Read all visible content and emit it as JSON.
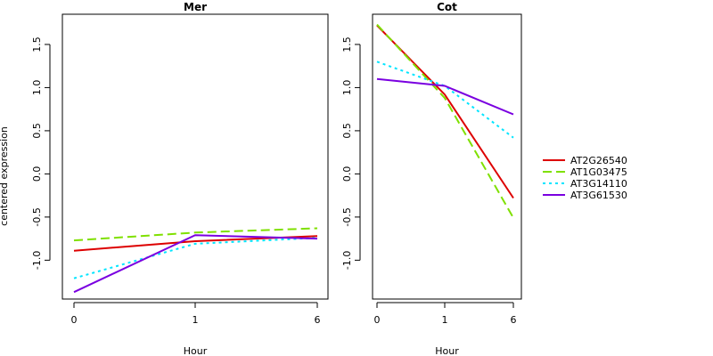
{
  "chart_data": {
    "type": "line",
    "shared_ylabel": "centered expression",
    "xlabel": "Hour",
    "ylim": [
      -1.45,
      1.85
    ],
    "y_ticks": [
      -1.0,
      -0.5,
      0.0,
      0.5,
      1.0,
      1.5
    ],
    "y_tick_labels": [
      "-1.0",
      "-0.5",
      "0.0",
      "0.5",
      "1.0",
      "1.5"
    ],
    "x_categories": [
      "0",
      "1",
      "6"
    ],
    "legend": [
      {
        "name": "AT2G26540",
        "color": "#dd0000",
        "dash": "solid"
      },
      {
        "name": "AT1G03475",
        "color": "#7fe000",
        "dash": "dashed"
      },
      {
        "name": "AT3G14110",
        "color": "#00e5ff",
        "dash": "dotted"
      },
      {
        "name": "AT3G61530",
        "color": "#7a00e0",
        "dash": "solid"
      }
    ],
    "legend_position": "right",
    "panels": [
      {
        "title": "Mer",
        "series": [
          {
            "name": "AT2G26540",
            "values": [
              -0.89,
              -0.78,
              -0.72
            ]
          },
          {
            "name": "AT1G03475",
            "values": [
              -0.77,
              -0.68,
              -0.63
            ]
          },
          {
            "name": "AT3G14110",
            "values": [
              -1.21,
              -0.81,
              -0.74
            ]
          },
          {
            "name": "AT3G61530",
            "values": [
              -1.37,
              -0.71,
              -0.75
            ]
          }
        ]
      },
      {
        "title": "Cot",
        "series": [
          {
            "name": "AT2G26540",
            "values": [
              1.72,
              0.92,
              -0.28
            ]
          },
          {
            "name": "AT1G03475",
            "values": [
              1.73,
              0.88,
              -0.51
            ]
          },
          {
            "name": "AT3G14110",
            "values": [
              1.3,
              1.02,
              0.42
            ]
          },
          {
            "name": "AT3G61530",
            "values": [
              1.1,
              1.02,
              0.69
            ]
          }
        ]
      }
    ]
  }
}
